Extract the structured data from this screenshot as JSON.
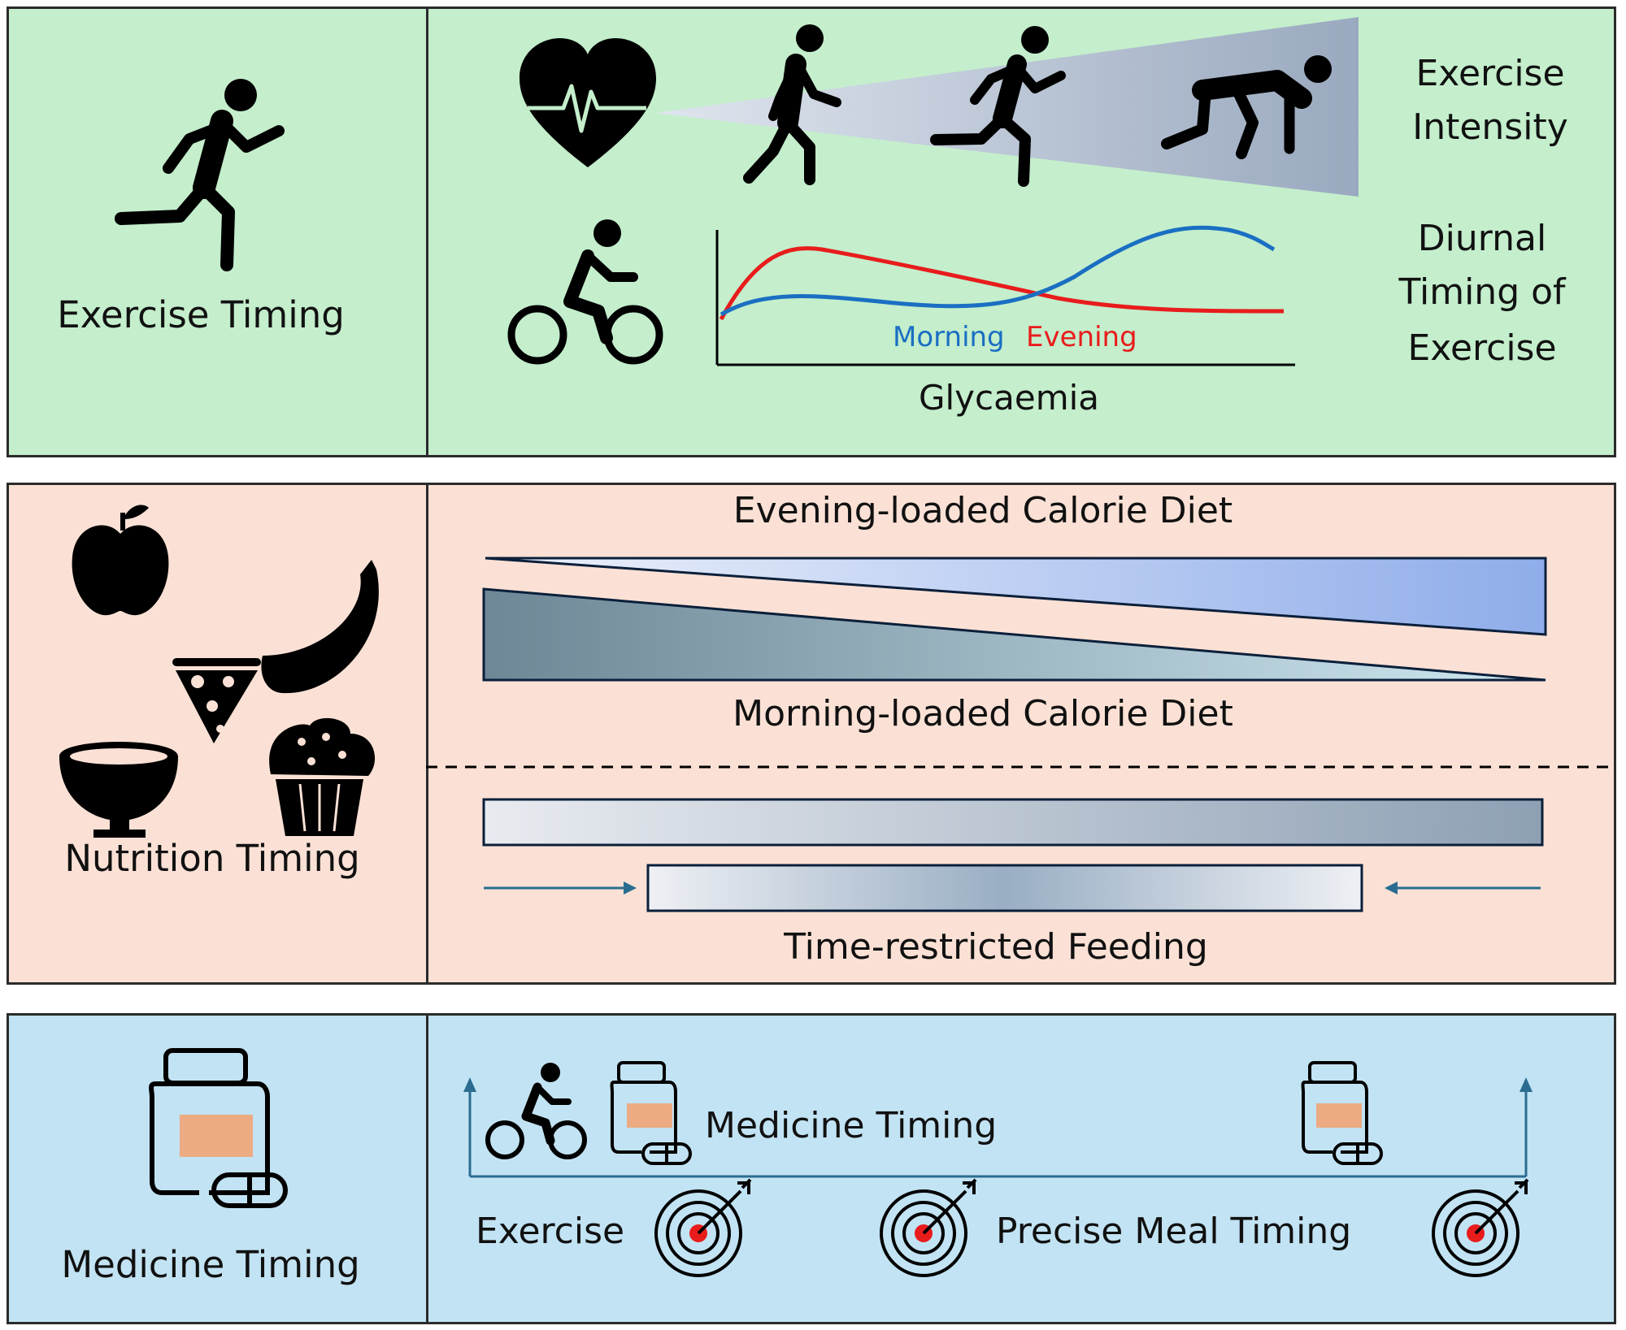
{
  "exercise_panel": {
    "title": "Exercise Timing",
    "intensity_label_1": "Exercise",
    "intensity_label_2": "Intensity",
    "diurnal_label_1": "Diurnal",
    "diurnal_label_2": "Timing of",
    "diurnal_label_3": "Exercise",
    "chart_xlabel": "Glycaemia",
    "legend_morning": "Morning",
    "legend_evening": "Evening",
    "morning_color": "#1a6fc2",
    "evening_color": "#e81c1c",
    "icons": [
      "running-person-icon",
      "heart-rate-icon",
      "walking-person-icon",
      "running-person-icon",
      "sprint-start-person-icon",
      "cyclist-icon"
    ]
  },
  "nutrition_panel": {
    "title": "Nutrition Timing",
    "evening_diet": "Evening-loaded Calorie Diet",
    "morning_diet": "Morning-loaded Calorie Diet",
    "trf": "Time-restricted Feeding",
    "icons": [
      "apple-icon",
      "pizza-slice-icon",
      "banana-icon",
      "bowl-icon",
      "muffin-icon"
    ]
  },
  "medicine_panel": {
    "title": "Medicine Timing",
    "timeline_label": "Medicine Timing",
    "exercise_label": "Exercise",
    "meal_label": "Precise Meal Timing",
    "icons": [
      "medicine-bottle-icon",
      "pill-icon",
      "cyclist-icon",
      "target-icon"
    ]
  }
}
